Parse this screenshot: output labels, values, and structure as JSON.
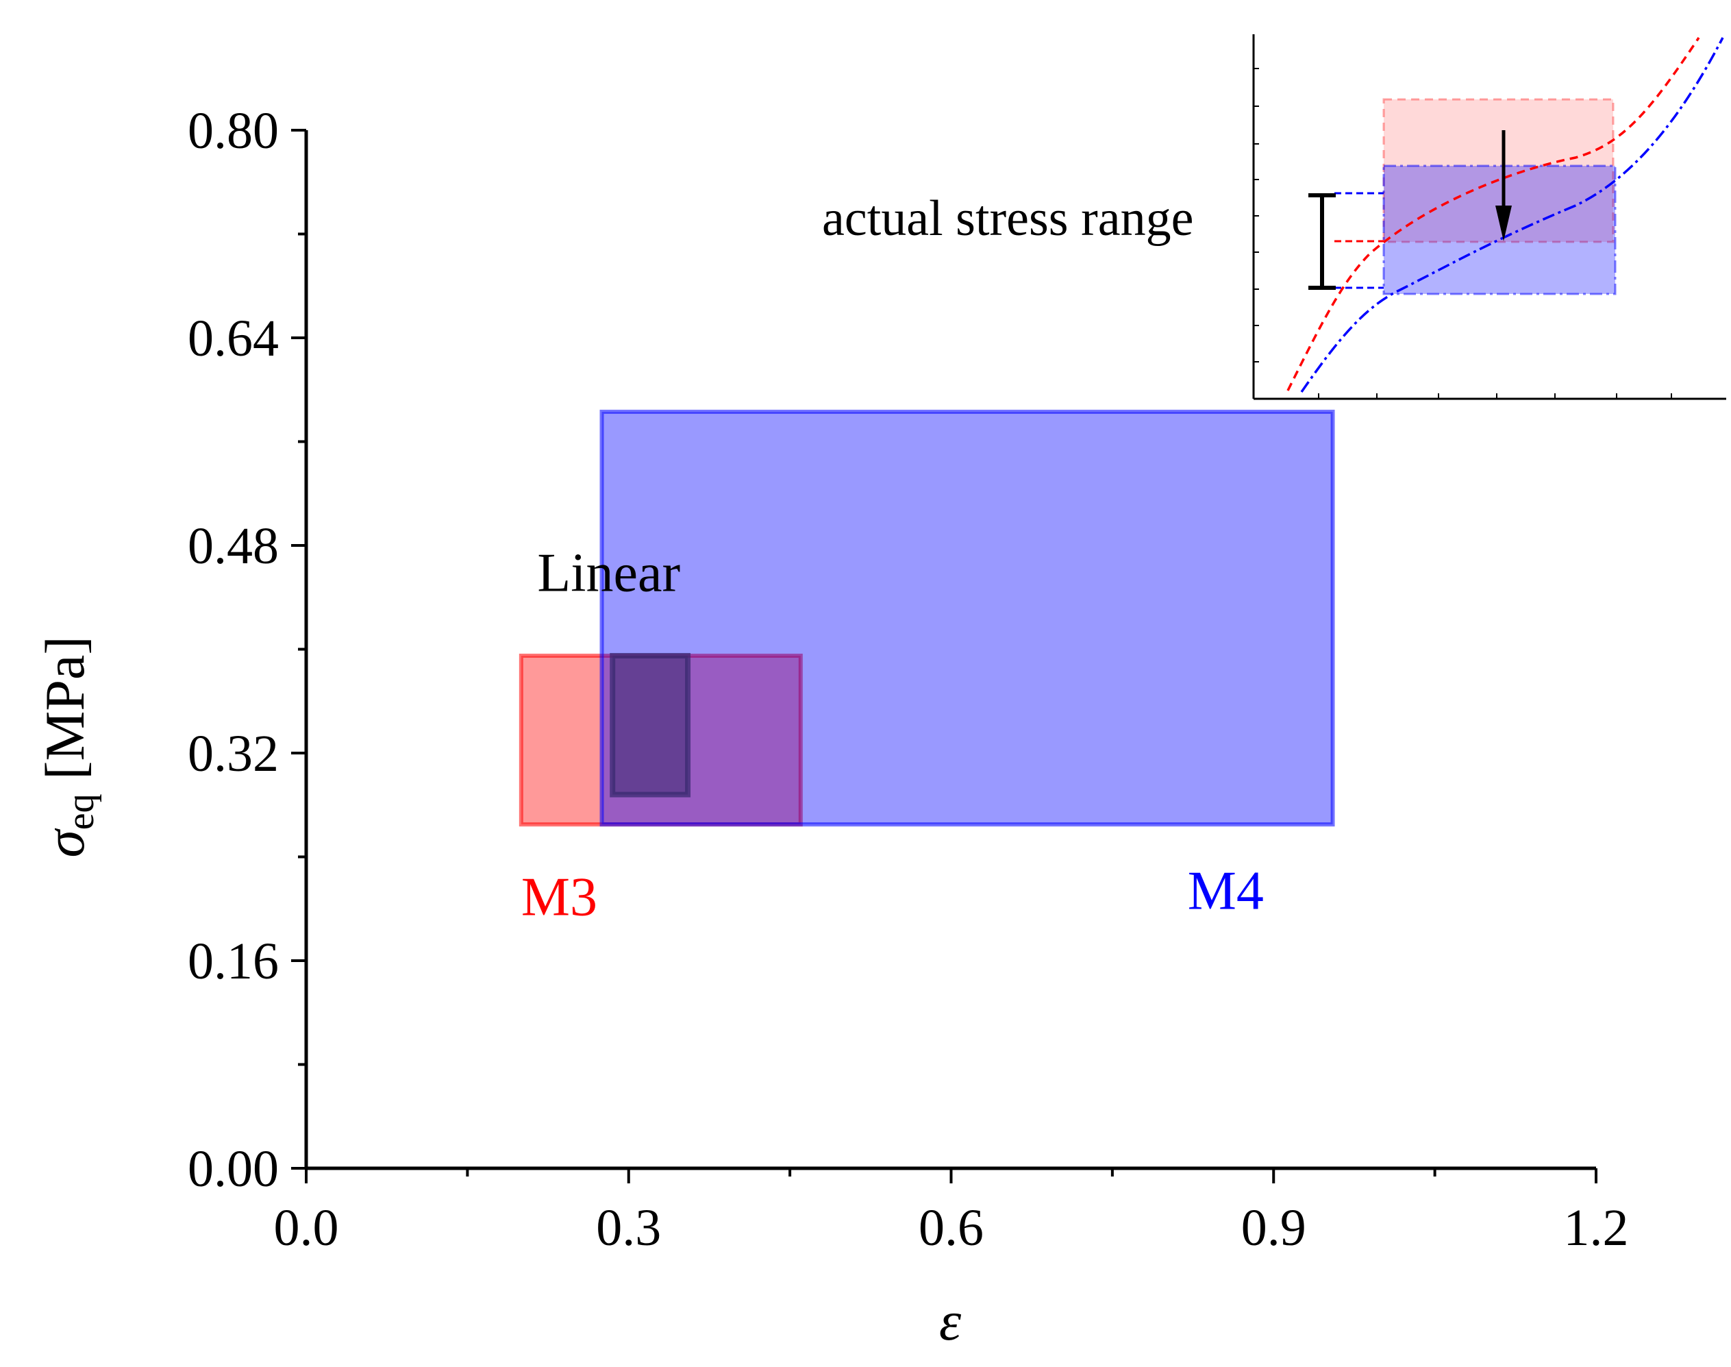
{
  "chart_data": {
    "type": "box",
    "title": "",
    "xlabel": "ε",
    "ylabel": {
      "symbol": "σ",
      "subscript": "eq",
      "unit": " [MPa]"
    },
    "xlim": [
      0.0,
      1.2
    ],
    "ylim": [
      0.0,
      0.8
    ],
    "x_ticks": [
      "0.0",
      "0.3",
      "0.6",
      "0.9",
      "1.2"
    ],
    "x_tick_values": [
      0.0,
      0.3,
      0.6,
      0.9,
      1.2
    ],
    "y_ticks": [
      "0.00",
      "0.16",
      "0.32",
      "0.48",
      "0.64",
      "0.80"
    ],
    "y_tick_values": [
      0.0,
      0.16,
      0.32,
      0.48,
      0.64,
      0.8
    ],
    "grid": false,
    "regions": [
      {
        "name": "M3",
        "x_range": [
          0.2,
          0.46
        ],
        "y_range": [
          0.265,
          0.395
        ],
        "color": "#ff0000"
      },
      {
        "name": "M4",
        "x_range": [
          0.275,
          0.955
        ],
        "y_range": [
          0.265,
          0.583
        ],
        "color": "#0000ff"
      },
      {
        "name": "Linear",
        "x_range": [
          0.285,
          0.355
        ],
        "y_range": [
          0.288,
          0.395
        ],
        "color": "#3a2a70"
      }
    ],
    "annotations": [
      {
        "text": "Linear",
        "x": 0.215,
        "y": 0.445
      },
      {
        "text": "M3",
        "x": 0.2,
        "y": 0.195
      },
      {
        "text": "M4",
        "x": 0.82,
        "y": 0.2
      }
    ],
    "inset": {
      "annotation": "actual stress range",
      "curves": [
        {
          "name": "M3",
          "style": "dashed",
          "color": "#ff0000"
        },
        {
          "name": "M4",
          "style": "dash-dot",
          "color": "#0000ff"
        }
      ]
    }
  },
  "colors": {
    "m3": "#ff0000",
    "m4": "#0000ff",
    "axis": "#000000"
  }
}
